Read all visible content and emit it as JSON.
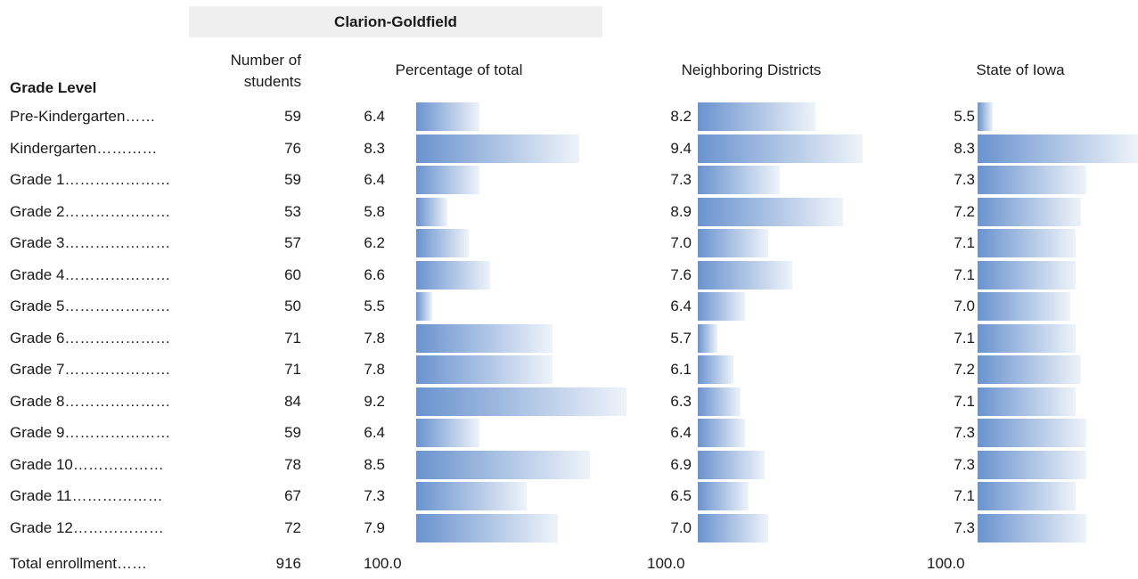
{
  "district": "Clarion-Goldfield",
  "headers": {
    "grade_level": "Grade Level",
    "number_of_students_line1": "Number of",
    "number_of_students_line2": "students",
    "percentage_of_total": "Percentage of total",
    "neighboring_districts": "Neighboring Districts",
    "state": "State of Iowa"
  },
  "colors": {
    "bar_start": "#6a93cf",
    "bar_end": "#eef3fa",
    "district_header_bg": "#efefef"
  },
  "chart_data": {
    "type": "bar",
    "orientation": "horizontal",
    "categories": [
      "Pre-Kindergarten……",
      "Kindergarten…………",
      "Grade 1…………………",
      "Grade 2…………………",
      "Grade 3…………………",
      "Grade 4…………………",
      "Grade 5…………………",
      "Grade 6…………………",
      "Grade 7…………………",
      "Grade 8…………………",
      "Grade 9…………………",
      "Grade 10………………",
      "Grade 11………………",
      "Grade 12………………"
    ],
    "counts": [
      "59",
      "76",
      "59",
      "53",
      "57",
      "60",
      "50",
      "71",
      "71",
      "84",
      "59",
      "78",
      "67",
      "72"
    ],
    "series": [
      {
        "name": "Percentage of total",
        "values": [
          6.4,
          8.3,
          6.4,
          5.8,
          6.2,
          6.6,
          5.5,
          7.8,
          7.8,
          9.2,
          6.4,
          8.5,
          7.3,
          7.9
        ],
        "labels": [
          "6.4",
          "8.3",
          "6.4",
          "5.8",
          "6.2",
          "6.6",
          "5.5",
          "7.8",
          "7.8",
          "9.2",
          "6.4",
          "8.5",
          "7.3",
          "7.9"
        ]
      },
      {
        "name": "Neighboring Districts",
        "values": [
          8.2,
          9.4,
          7.3,
          8.9,
          7.0,
          7.6,
          6.4,
          5.7,
          6.1,
          6.3,
          6.4,
          6.9,
          6.5,
          7.0
        ],
        "labels": [
          "8.2",
          "9.4",
          "7.3",
          "8.9",
          "7.0",
          "7.6",
          "6.4",
          "5.7",
          "6.1",
          "6.3",
          "6.4",
          "6.9",
          "6.5",
          "7.0"
        ]
      },
      {
        "name": "State of Iowa",
        "values": [
          5.5,
          8.3,
          7.3,
          7.2,
          7.1,
          7.1,
          7.0,
          7.1,
          7.2,
          7.1,
          7.3,
          7.3,
          7.1,
          7.3
        ],
        "labels": [
          "5.5",
          "8.3",
          "7.3",
          "7.2",
          "7.1",
          "7.1",
          "7.0",
          "7.1",
          "7.2",
          "7.1",
          "7.3",
          "7.3",
          "7.1",
          "7.3"
        ]
      }
    ],
    "total": {
      "label": "Total enrollment……",
      "count": "916",
      "percentages": [
        "100.0",
        "100.0",
        "100.0"
      ]
    }
  }
}
